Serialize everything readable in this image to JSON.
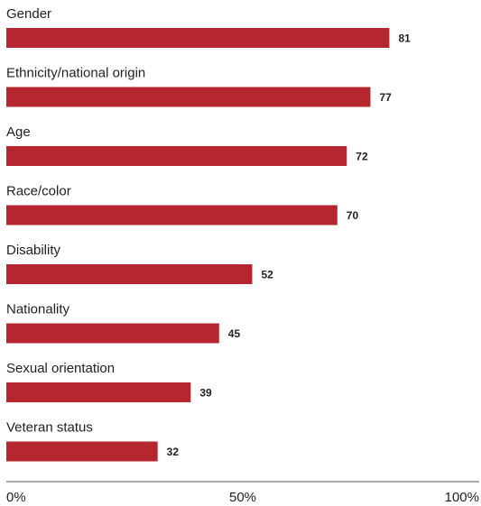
{
  "chart_data": {
    "type": "bar",
    "orientation": "horizontal",
    "categories": [
      "Gender",
      "Ethnicity/national origin",
      "Age",
      "Race/color",
      "Disability",
      "Nationality",
      "Sexual orientation",
      "Veteran status"
    ],
    "values": [
      81,
      77,
      72,
      70,
      52,
      45,
      39,
      32
    ],
    "xlim": [
      0,
      100
    ],
    "x_ticks": [
      {
        "value": 0,
        "label": "0%"
      },
      {
        "value": 50,
        "label": "50%"
      },
      {
        "value": 100,
        "label": "100%"
      }
    ],
    "bar_color": "#b5262e",
    "data_labels": true,
    "grid": false,
    "legend": "none"
  }
}
